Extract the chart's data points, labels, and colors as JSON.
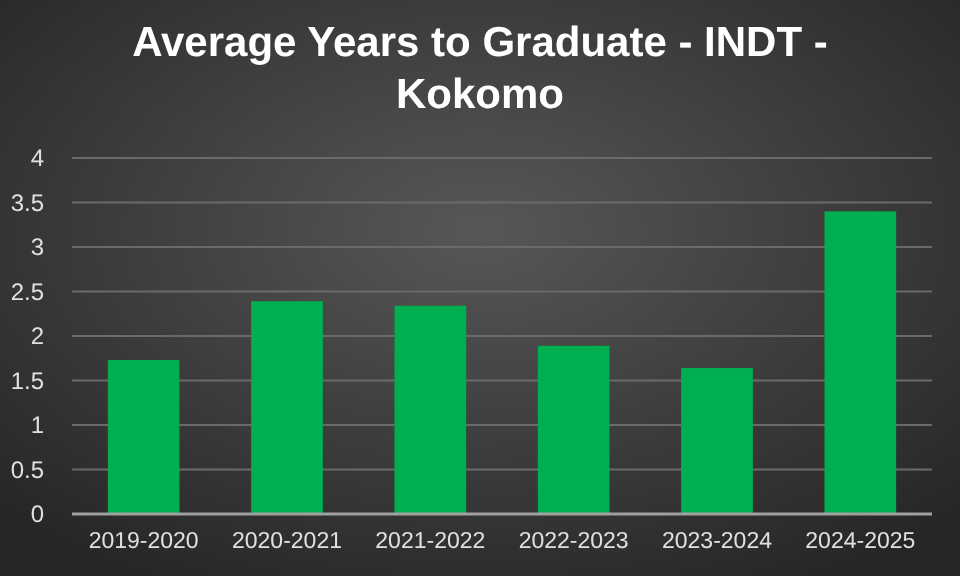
{
  "chart_data": {
    "type": "bar",
    "title": "Average Years to Graduate - INDT - Kokomo",
    "categories": [
      "2019-2020",
      "2020-2021",
      "2021-2022",
      "2022-2023",
      "2023-2024",
      "2024-2025"
    ],
    "values": [
      1.73,
      2.39,
      2.34,
      1.89,
      1.64,
      3.4
    ],
    "color": "#00b050",
    "ylim": [
      0,
      4
    ],
    "yticks": [
      0,
      0.5,
      1,
      1.5,
      2,
      2.5,
      3,
      3.5,
      4
    ],
    "grid": "y"
  }
}
